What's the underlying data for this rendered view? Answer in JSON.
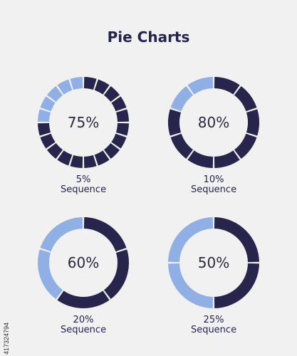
{
  "title": "Pie Charts",
  "colors": {
    "dark": "#28254c",
    "light": "#8fafe5",
    "background": "#f1f1f2"
  },
  "side_code": "417324794",
  "chart_data": [
    {
      "type": "pie",
      "center_label": "75%",
      "segment_label": "5%",
      "segment_caption": "Sequence",
      "segments": 20,
      "filled_percent": 75
    },
    {
      "type": "pie",
      "center_label": "80%",
      "segment_label": "10%",
      "segment_caption": "Sequence",
      "segments": 10,
      "filled_percent": 80
    },
    {
      "type": "pie",
      "center_label": "60%",
      "segment_label": "20%",
      "segment_caption": "Sequence",
      "segments": 5,
      "filled_percent": 60
    },
    {
      "type": "pie",
      "center_label": "50%",
      "segment_label": "25%",
      "segment_caption": "Sequence",
      "segments": 4,
      "filled_percent": 50
    }
  ]
}
